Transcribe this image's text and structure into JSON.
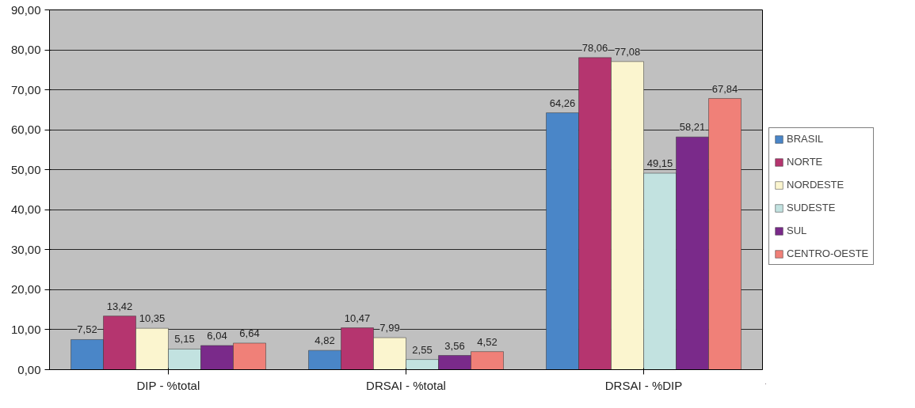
{
  "chart_data": {
    "type": "bar",
    "categories": [
      "DIP - %total",
      "DRSAI - %total",
      "DRSAI - %DIP"
    ],
    "series": [
      {
        "name": "BRASIL",
        "color": "#4a86c8",
        "values": [
          7.52,
          4.82,
          64.26
        ],
        "value_labels": [
          "7,52",
          "4,82",
          "64,26"
        ]
      },
      {
        "name": "NORTE",
        "color": "#b5356f",
        "values": [
          13.42,
          10.47,
          78.06
        ],
        "value_labels": [
          "13,42",
          "10,47",
          "78,06"
        ]
      },
      {
        "name": "NORDESTE",
        "color": "#fbf5cf",
        "values": [
          10.35,
          7.99,
          77.08
        ],
        "value_labels": [
          "10,35",
          "7,99",
          "77,08"
        ]
      },
      {
        "name": "SUDESTE",
        "color": "#c2e2e0",
        "values": [
          5.15,
          2.55,
          49.15
        ],
        "value_labels": [
          "5,15",
          "2,55",
          "49,15"
        ]
      },
      {
        "name": "SUL",
        "color": "#7a2a8a",
        "values": [
          6.04,
          3.56,
          58.21
        ],
        "value_labels": [
          "6,04",
          "3,56",
          "58,21"
        ]
      },
      {
        "name": "CENTRO-OESTE",
        "color": "#f08078",
        "values": [
          6.64,
          4.52,
          67.84
        ],
        "value_labels": [
          "6,64",
          "4,52",
          "67,84"
        ]
      }
    ],
    "ylim": [
      0,
      90
    ],
    "yticks": [
      {
        "value": 0,
        "label": "0,00"
      },
      {
        "value": 10,
        "label": "10,00"
      },
      {
        "value": 20,
        "label": "20,00"
      },
      {
        "value": 30,
        "label": "30,00"
      },
      {
        "value": 40,
        "label": "40,00"
      },
      {
        "value": 50,
        "label": "50,00"
      },
      {
        "value": 60,
        "label": "60,00"
      },
      {
        "value": 70,
        "label": "70,00"
      },
      {
        "value": 80,
        "label": "80,00"
      },
      {
        "value": 90,
        "label": "90,00"
      }
    ],
    "grid": "y",
    "legend": "right"
  }
}
